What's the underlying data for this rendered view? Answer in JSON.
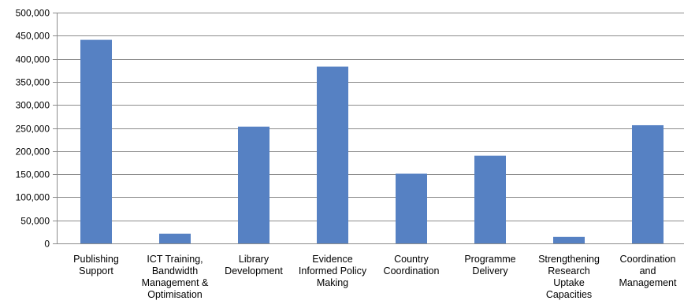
{
  "chart_data": {
    "type": "bar",
    "categories": [
      [
        "Publishing",
        "Support"
      ],
      [
        "ICT Training,",
        "Bandwidth",
        "Management &",
        "Optimisation"
      ],
      [
        "Library",
        "Development"
      ],
      [
        "Evidence",
        "Informed Policy",
        "Making"
      ],
      [
        "Country",
        "Coordination"
      ],
      [
        "Programme",
        "Delivery"
      ],
      [
        "Strengthening",
        "Research",
        "Uptake",
        "Capacities"
      ],
      [
        "Coordination",
        "and",
        "Management"
      ]
    ],
    "values": [
      441000,
      21000,
      253000,
      383000,
      151000,
      190000,
      14000,
      256000
    ],
    "ylim": [
      0,
      500000
    ],
    "yticks": [
      "0",
      "50,000",
      "100,000",
      "150,000",
      "200,000",
      "250,000",
      "300,000",
      "350,000",
      "400,000",
      "450,000",
      "500,000"
    ],
    "grid": true,
    "title": "",
    "xlabel": "",
    "ylabel": "",
    "bar_color": "#5681c3"
  }
}
